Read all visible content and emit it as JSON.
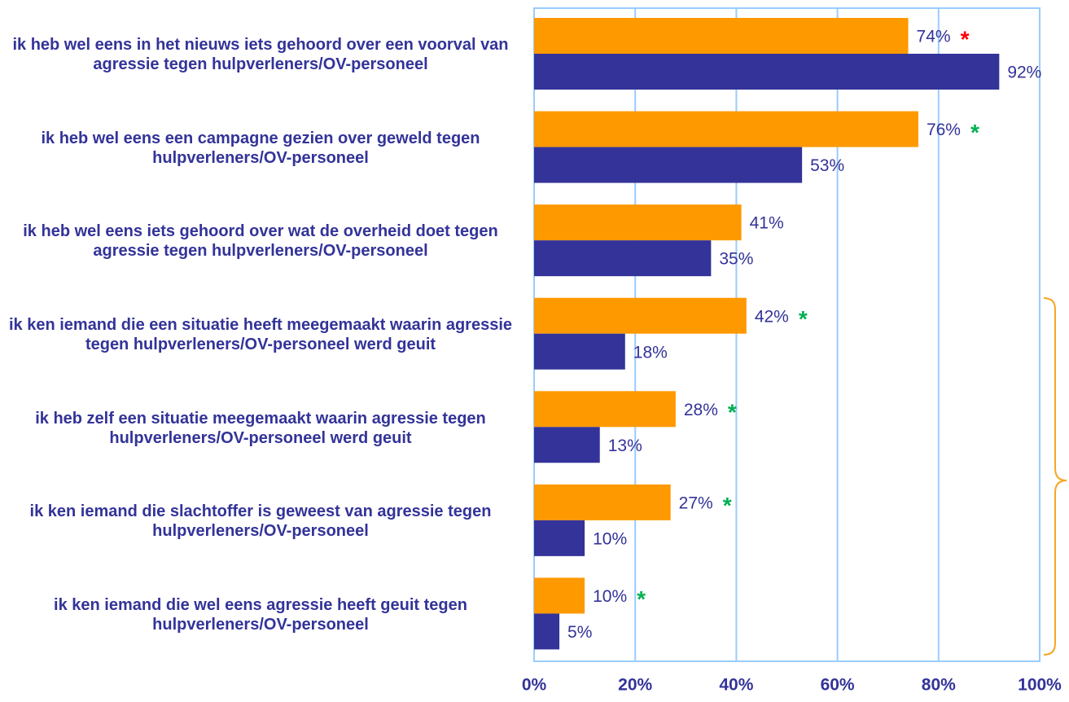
{
  "chart_data": {
    "type": "hbar",
    "categories": [
      "ik heb wel eens in het nieuws iets gehoord over een voorval van agressie tegen hulpverleners/OV-personeel",
      "ik heb wel eens een campagne gezien over geweld tegen hulpverleners/OV-personeel",
      "ik heb wel eens iets gehoord over wat de overheid doet tegen agressie tegen hulpverleners/OV-personeel",
      "ik ken iemand die een situatie heeft meegemaakt waarin agressie tegen hulpverleners/OV-personeel werd geuit",
      "ik heb zelf een situatie meegemaakt waarin agressie tegen hulpverleners/OV-personeel werd geuit",
      "ik ken iemand die slachtoffer is geweest van agressie tegen hulpverleners/OV-personeel",
      "ik ken iemand die wel eens agressie heeft geuit tegen hulpverleners/OV-personeel"
    ],
    "series": [
      {
        "color": "#ff9900",
        "values": [
          74,
          76,
          41,
          42,
          28,
          27,
          10
        ],
        "value_labels": [
          "74%",
          "76%",
          "41%",
          "42%",
          "28%",
          "27%",
          "10%"
        ]
      },
      {
        "color": "#333399",
        "values": [
          92,
          53,
          35,
          18,
          13,
          10,
          5
        ],
        "value_labels": [
          "92%",
          "53%",
          "35%",
          "18%",
          "13%",
          "10%",
          "5%"
        ]
      }
    ],
    "markers": [
      "*",
      "*",
      null,
      "*",
      "*",
      "*",
      "*"
    ],
    "marker_colors": [
      "#ff0000",
      "#00b050",
      null,
      "#00b050",
      "#00b050",
      "#00b050",
      "#00b050"
    ],
    "xlim": [
      0,
      100
    ],
    "xticks": [
      {
        "value": 0,
        "label": "0%"
      },
      {
        "value": 20,
        "label": "20%"
      },
      {
        "value": 40,
        "label": "40%"
      },
      {
        "value": 60,
        "label": "60%"
      },
      {
        "value": 80,
        "label": "80%"
      },
      {
        "value": 100,
        "label": "100%"
      }
    ],
    "grid": true
  }
}
